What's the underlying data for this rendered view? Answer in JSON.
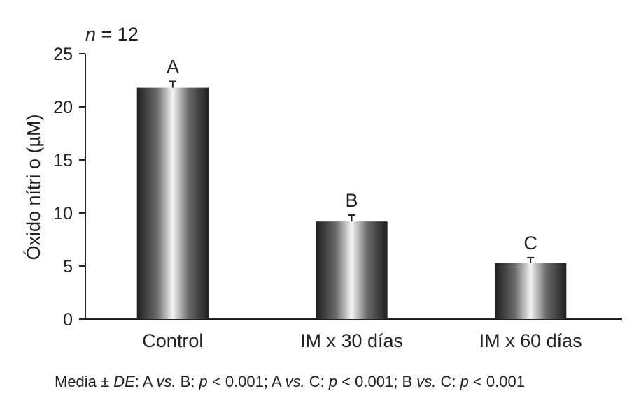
{
  "chart_data": {
    "type": "bar",
    "sample_size_label": "n = 12",
    "ylabel": "Óxido nítri o (µM)",
    "xlabel": "",
    "ylim": [
      0,
      25
    ],
    "yticks": [
      "0",
      "5",
      "10",
      "15",
      "20",
      "25"
    ],
    "categories": [
      "Control",
      "IM x 30 días",
      "IM x 60 días"
    ],
    "values": [
      21.8,
      9.2,
      5.3
    ],
    "errors": [
      0.6,
      0.6,
      0.5
    ],
    "group_letters": [
      "A",
      "B",
      "C"
    ],
    "bar_fill": "metallic-gray-gradient",
    "grid": false
  },
  "footnote": {
    "p1": "Media ± ",
    "p2": "DE",
    "p3": ": A ",
    "p4": "vs.",
    "p5": " B: ",
    "p6": "p",
    "p7": " < 0.001; A ",
    "p8": "vs.",
    "p9": " C: ",
    "p10": "p",
    "p11": " < 0.001; B ",
    "p12": "vs.",
    "p13": " C: ",
    "p14": "p",
    "p15": " < 0.001"
  }
}
